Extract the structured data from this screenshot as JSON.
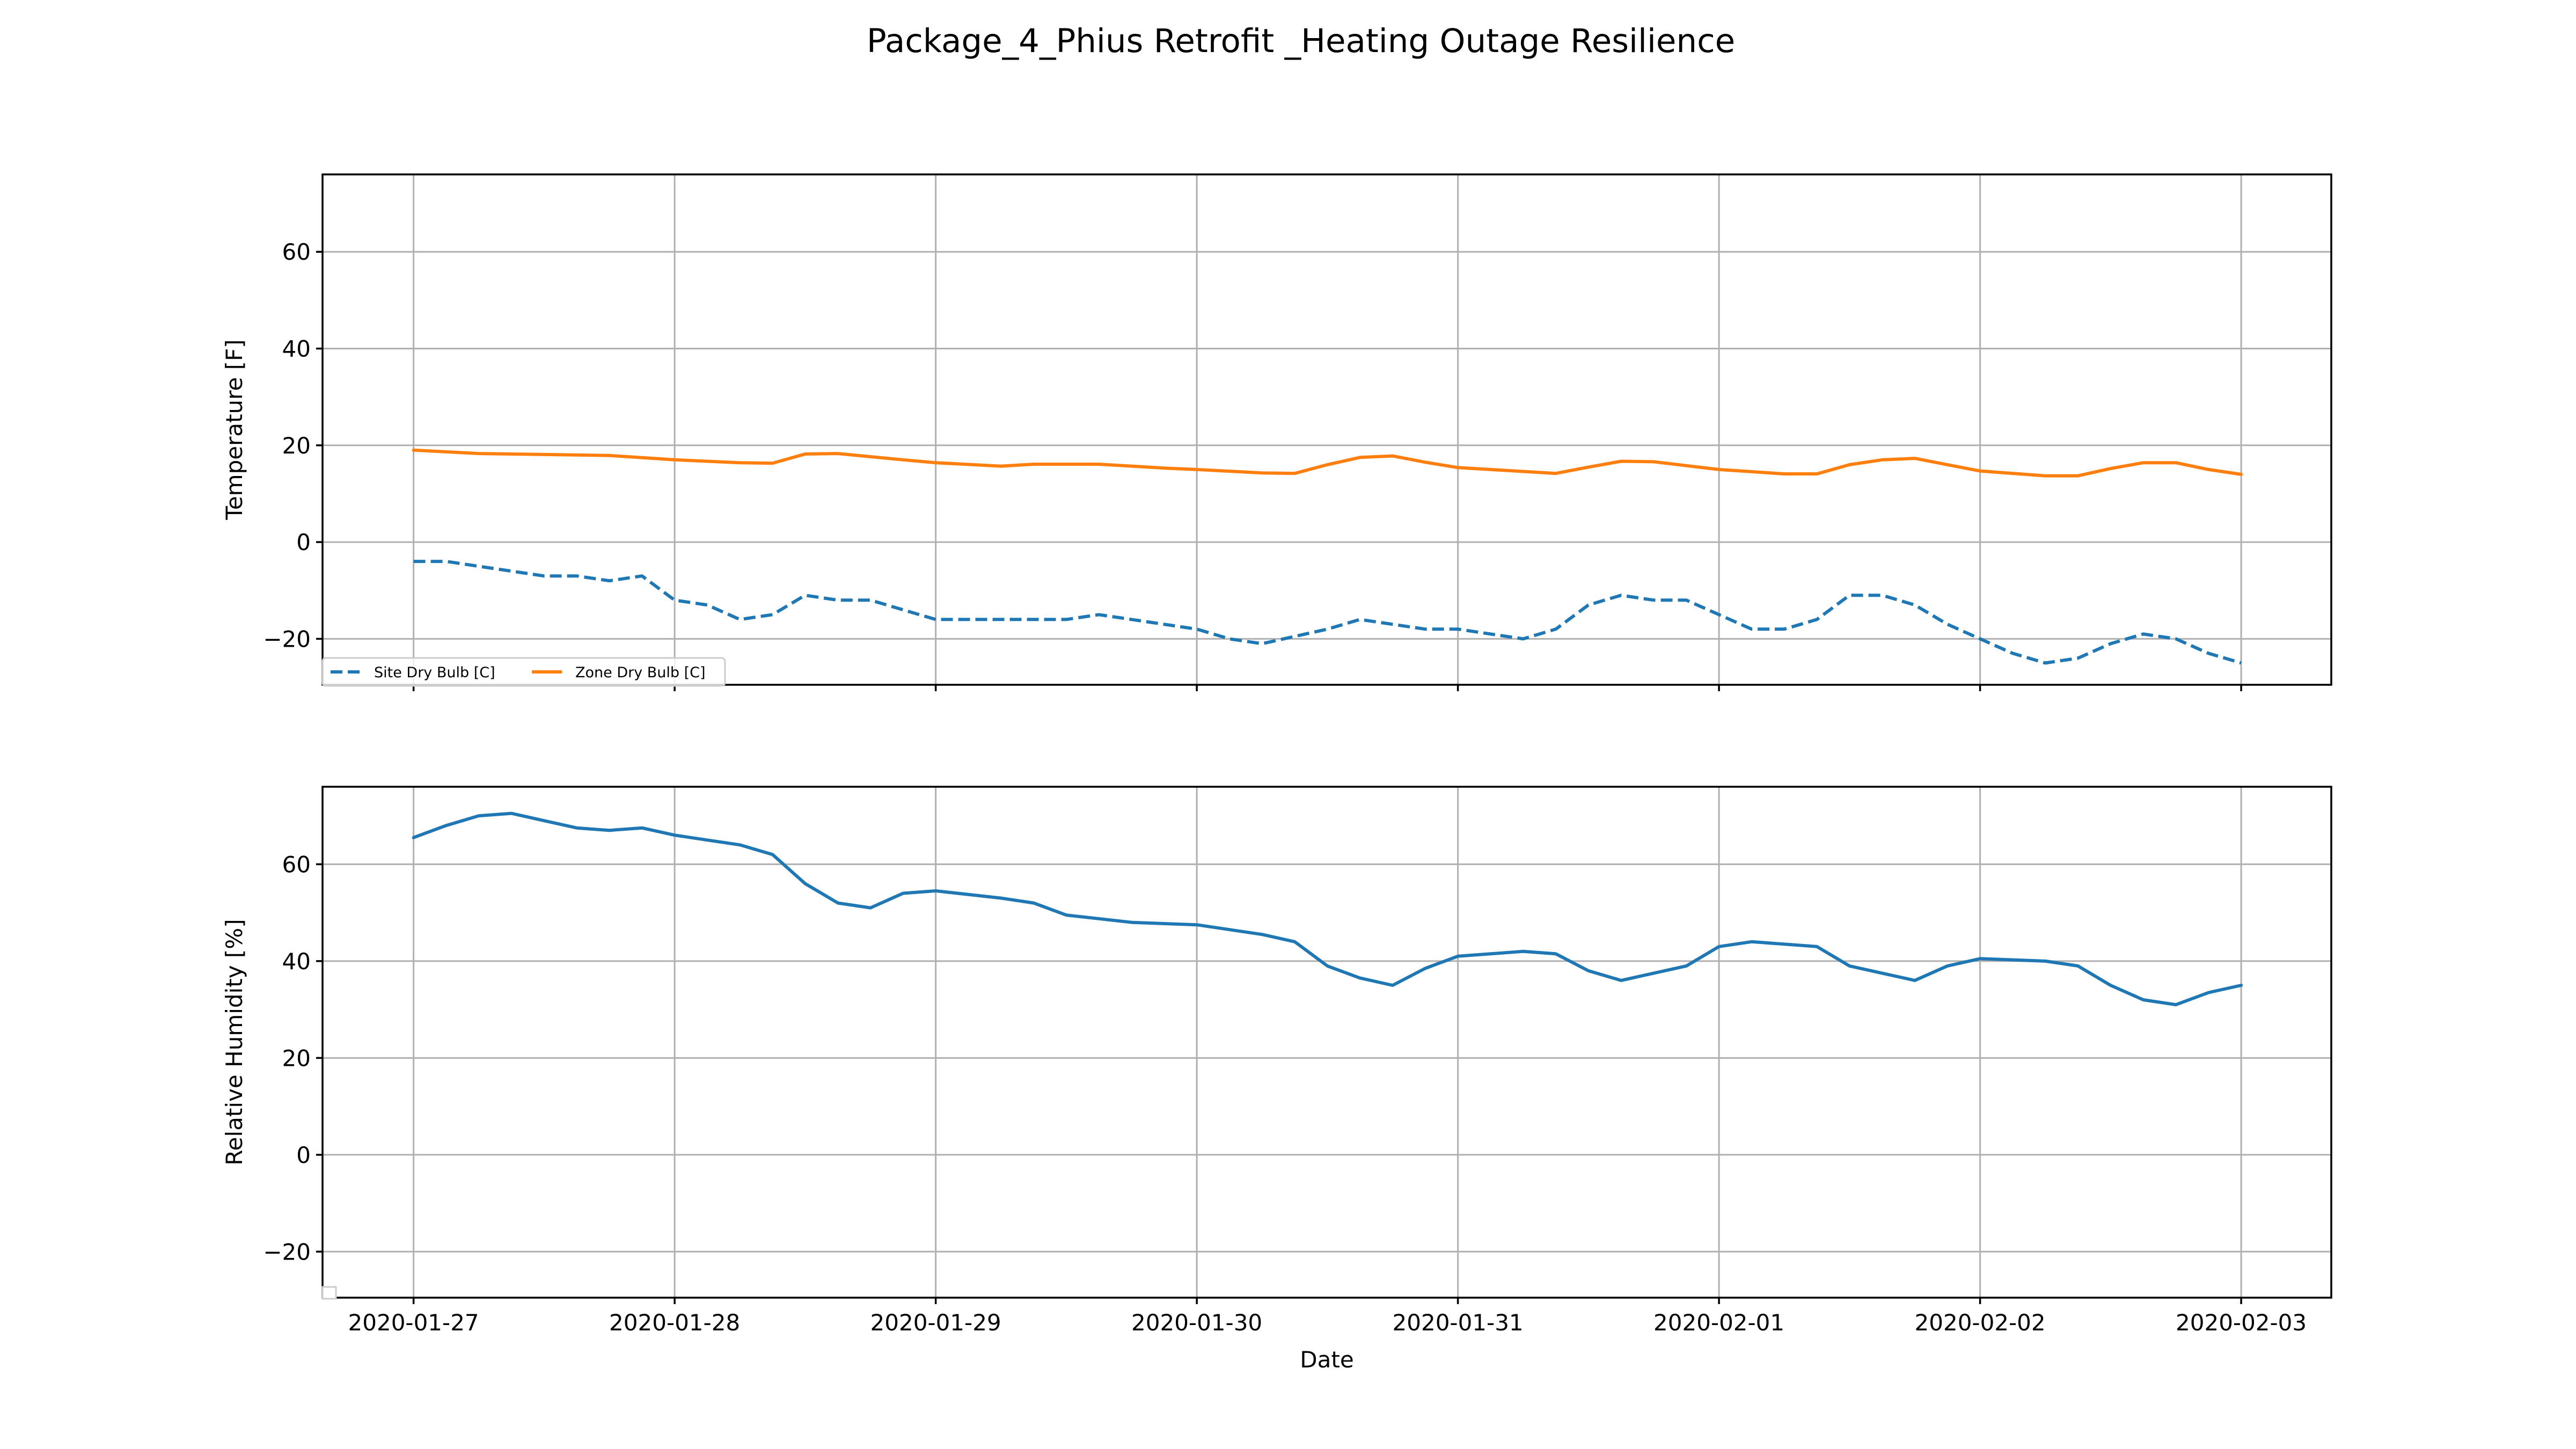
{
  "title": "Package_4_Phius Retrofit  _Heating Outage Resilience",
  "chart_data": [
    {
      "type": "line",
      "ylabel": "Temperature [F]",
      "xlabel": "",
      "ylim": [
        -29.5,
        76
      ],
      "yticks": [
        -20,
        0,
        20,
        40,
        60
      ],
      "xlim": [
        "2020-01-26 15:38",
        "2020-02-03 08:17"
      ],
      "xticks": [
        "2020-01-27",
        "2020-01-28",
        "2020-01-29",
        "2020-01-30",
        "2020-01-31",
        "2020-02-01",
        "2020-02-02",
        "2020-02-03"
      ],
      "grid": true,
      "legend": {
        "placement": "lower-left",
        "entries": [
          "Site Dry Bulb [C]",
          "Zone Dry Bulb [C]"
        ]
      },
      "series": [
        {
          "name": "Site Dry Bulb [C]",
          "style": "dashed",
          "color": "#1f77b4",
          "points": [
            [
              "2020-01-27 00:00",
              -4
            ],
            [
              "2020-01-27 03:00",
              -4
            ],
            [
              "2020-01-27 06:00",
              -5
            ],
            [
              "2020-01-27 09:00",
              -6
            ],
            [
              "2020-01-27 12:00",
              -7
            ],
            [
              "2020-01-27 15:00",
              -7
            ],
            [
              "2020-01-27 18:00",
              -8
            ],
            [
              "2020-01-27 21:00",
              -7
            ],
            [
              "2020-01-28 00:00",
              -12
            ],
            [
              "2020-01-28 03:00",
              -13
            ],
            [
              "2020-01-28 06:00",
              -16
            ],
            [
              "2020-01-28 09:00",
              -15
            ],
            [
              "2020-01-28 12:00",
              -11
            ],
            [
              "2020-01-28 15:00",
              -12
            ],
            [
              "2020-01-28 18:00",
              -12
            ],
            [
              "2020-01-28 21:00",
              -14
            ],
            [
              "2020-01-29 00:00",
              -16
            ],
            [
              "2020-01-29 06:00",
              -16
            ],
            [
              "2020-01-29 12:00",
              -16
            ],
            [
              "2020-01-29 15:00",
              -15
            ],
            [
              "2020-01-29 18:00",
              -16
            ],
            [
              "2020-01-29 21:00",
              -17
            ],
            [
              "2020-01-30 00:00",
              -18
            ],
            [
              "2020-01-30 03:00",
              -20
            ],
            [
              "2020-01-30 06:00",
              -21
            ],
            [
              "2020-01-30 12:00",
              -18
            ],
            [
              "2020-01-30 15:00",
              -16
            ],
            [
              "2020-01-30 18:00",
              -17
            ],
            [
              "2020-01-30 21:00",
              -18
            ],
            [
              "2020-01-31 00:00",
              -18
            ],
            [
              "2020-01-31 03:00",
              -19
            ],
            [
              "2020-01-31 06:00",
              -20
            ],
            [
              "2020-01-31 09:00",
              -18
            ],
            [
              "2020-01-31 12:00",
              -13
            ],
            [
              "2020-01-31 15:00",
              -11
            ],
            [
              "2020-01-31 18:00",
              -12
            ],
            [
              "2020-01-31 21:00",
              -12
            ],
            [
              "2020-02-01 00:00",
              -15
            ],
            [
              "2020-02-01 03:00",
              -18
            ],
            [
              "2020-02-01 06:00",
              -18
            ],
            [
              "2020-02-01 09:00",
              -16
            ],
            [
              "2020-02-01 12:00",
              -11
            ],
            [
              "2020-02-01 15:00",
              -11
            ],
            [
              "2020-02-01 18:00",
              -13
            ],
            [
              "2020-02-01 21:00",
              -17
            ],
            [
              "2020-02-02 00:00",
              -20
            ],
            [
              "2020-02-02 03:00",
              -23
            ],
            [
              "2020-02-02 06:00",
              -25
            ],
            [
              "2020-02-02 09:00",
              -24
            ],
            [
              "2020-02-02 12:00",
              -21
            ],
            [
              "2020-02-02 15:00",
              -19
            ],
            [
              "2020-02-02 18:00",
              -20
            ],
            [
              "2020-02-02 21:00",
              -23
            ],
            [
              "2020-02-03 00:00",
              -25
            ]
          ]
        },
        {
          "name": "Zone Dry Bulb [C]",
          "style": "solid",
          "color": "#ff7f0e",
          "points": [
            [
              "2020-01-27 00:00",
              19
            ],
            [
              "2020-01-27 06:00",
              18.3
            ],
            [
              "2020-01-27 12:00",
              18.1
            ],
            [
              "2020-01-27 18:00",
              17.9
            ],
            [
              "2020-01-28 00:00",
              17
            ],
            [
              "2020-01-28 06:00",
              16.4
            ],
            [
              "2020-01-28 09:00",
              16.3
            ],
            [
              "2020-01-28 12:00",
              18.2
            ],
            [
              "2020-01-28 15:00",
              18.3
            ],
            [
              "2020-01-28 21:00",
              17
            ],
            [
              "2020-01-29 00:00",
              16.4
            ],
            [
              "2020-01-29 06:00",
              15.7
            ],
            [
              "2020-01-29 09:00",
              16.1
            ],
            [
              "2020-01-29 15:00",
              16.1
            ],
            [
              "2020-01-29 21:00",
              15.3
            ],
            [
              "2020-01-30 00:00",
              15
            ],
            [
              "2020-01-30 06:00",
              14.3
            ],
            [
              "2020-01-30 09:00",
              14.2
            ],
            [
              "2020-01-30 12:00",
              16
            ],
            [
              "2020-01-30 15:00",
              17.5
            ],
            [
              "2020-01-30 18:00",
              17.8
            ],
            [
              "2020-01-30 21:00",
              16.5
            ],
            [
              "2020-01-31 00:00",
              15.4
            ],
            [
              "2020-01-31 06:00",
              14.6
            ],
            [
              "2020-01-31 09:00",
              14.2
            ],
            [
              "2020-01-31 12:00",
              15.5
            ],
            [
              "2020-01-31 15:00",
              16.7
            ],
            [
              "2020-01-31 18:00",
              16.6
            ],
            [
              "2020-01-31 21:00",
              15.8
            ],
            [
              "2020-02-01 00:00",
              15
            ],
            [
              "2020-02-01 06:00",
              14.1
            ],
            [
              "2020-02-01 09:00",
              14.1
            ],
            [
              "2020-02-01 12:00",
              16
            ],
            [
              "2020-02-01 15:00",
              17
            ],
            [
              "2020-02-01 18:00",
              17.3
            ],
            [
              "2020-02-01 21:00",
              16
            ],
            [
              "2020-02-02 00:00",
              14.7
            ],
            [
              "2020-02-02 06:00",
              13.7
            ],
            [
              "2020-02-02 09:00",
              13.7
            ],
            [
              "2020-02-02 12:00",
              15.2
            ],
            [
              "2020-02-02 15:00",
              16.4
            ],
            [
              "2020-02-02 18:00",
              16.4
            ],
            [
              "2020-02-02 21:00",
              15
            ],
            [
              "2020-02-03 00:00",
              14
            ]
          ]
        }
      ]
    },
    {
      "type": "line",
      "ylabel": "Relative Humidity [%]",
      "xlabel": "Date",
      "ylim": [
        -29.5,
        76
      ],
      "yticks": [
        -20,
        0,
        20,
        40,
        60
      ],
      "xlim": [
        "2020-01-26 15:38",
        "2020-02-03 08:17"
      ],
      "xticks": [
        "2020-01-27",
        "2020-01-28",
        "2020-01-29",
        "2020-01-30",
        "2020-01-31",
        "2020-02-01",
        "2020-02-02",
        "2020-02-03"
      ],
      "grid": true,
      "series": [
        {
          "style": "solid",
          "color": "#1f77b4",
          "points": [
            [
              "2020-01-27 00:00",
              65.5
            ],
            [
              "2020-01-27 03:00",
              68
            ],
            [
              "2020-01-27 06:00",
              70
            ],
            [
              "2020-01-27 09:00",
              70.5
            ],
            [
              "2020-01-27 12:00",
              69
            ],
            [
              "2020-01-27 15:00",
              67.5
            ],
            [
              "2020-01-27 18:00",
              67
            ],
            [
              "2020-01-27 21:00",
              67.5
            ],
            [
              "2020-01-28 00:00",
              66
            ],
            [
              "2020-01-28 03:00",
              65
            ],
            [
              "2020-01-28 06:00",
              64
            ],
            [
              "2020-01-28 09:00",
              62
            ],
            [
              "2020-01-28 12:00",
              56
            ],
            [
              "2020-01-28 15:00",
              52
            ],
            [
              "2020-01-28 18:00",
              51
            ],
            [
              "2020-01-28 21:00",
              54
            ],
            [
              "2020-01-29 00:00",
              54.5
            ],
            [
              "2020-01-29 06:00",
              53
            ],
            [
              "2020-01-29 09:00",
              52
            ],
            [
              "2020-01-29 12:00",
              49.5
            ],
            [
              "2020-01-29 18:00",
              48
            ],
            [
              "2020-01-30 00:00",
              47.5
            ],
            [
              "2020-01-30 06:00",
              45.5
            ],
            [
              "2020-01-30 09:00",
              44
            ],
            [
              "2020-01-30 12:00",
              39
            ],
            [
              "2020-01-30 15:00",
              36.5
            ],
            [
              "2020-01-30 18:00",
              35
            ],
            [
              "2020-01-30 21:00",
              38.5
            ],
            [
              "2020-01-31 00:00",
              41
            ],
            [
              "2020-01-31 06:00",
              42
            ],
            [
              "2020-01-31 09:00",
              41.5
            ],
            [
              "2020-01-31 12:00",
              38
            ],
            [
              "2020-01-31 15:00",
              36
            ],
            [
              "2020-01-31 21:00",
              39
            ],
            [
              "2020-02-01 00:00",
              43
            ],
            [
              "2020-02-01 03:00",
              44
            ],
            [
              "2020-02-01 09:00",
              43
            ],
            [
              "2020-02-01 12:00",
              39
            ],
            [
              "2020-02-01 15:00",
              37.5
            ],
            [
              "2020-02-01 18:00",
              36
            ],
            [
              "2020-02-01 21:00",
              39
            ],
            [
              "2020-02-02 00:00",
              40.5
            ],
            [
              "2020-02-02 06:00",
              40
            ],
            [
              "2020-02-02 09:00",
              39
            ],
            [
              "2020-02-02 12:00",
              35
            ],
            [
              "2020-02-02 15:00",
              32
            ],
            [
              "2020-02-02 18:00",
              31
            ],
            [
              "2020-02-02 21:00",
              33.5
            ],
            [
              "2020-02-03 00:00",
              35
            ]
          ]
        }
      ]
    }
  ]
}
